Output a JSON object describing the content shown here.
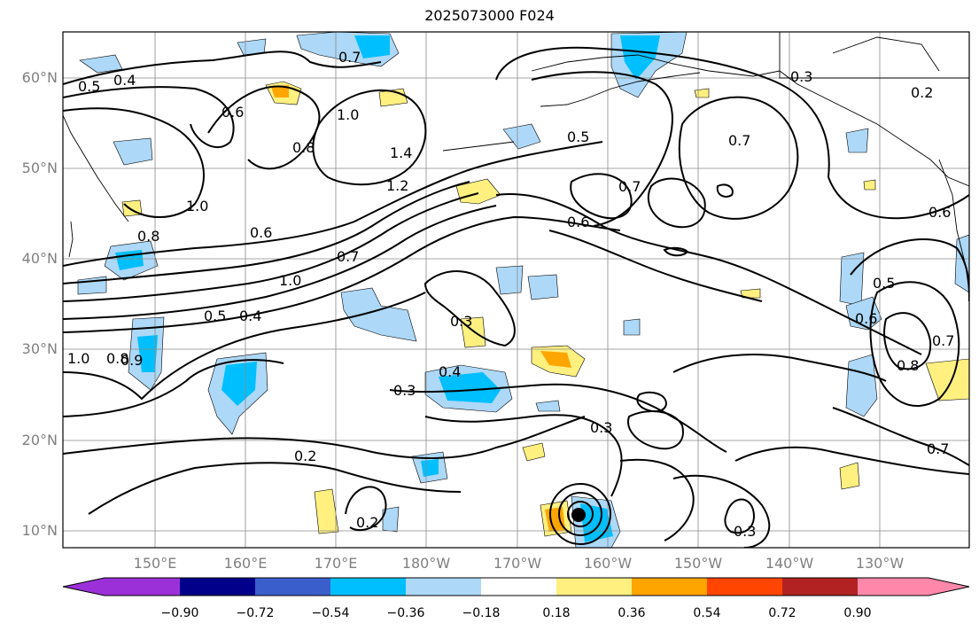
{
  "title": "2025073000 F024",
  "latitude_labels": [
    "60°N",
    "50°N",
    "40°N",
    "30°N",
    "20°N",
    "10°N"
  ],
  "longitude_labels": [
    "150°E",
    "160°E",
    "170°E",
    "180°W",
    "170°W",
    "160°W",
    "150°W",
    "140°W",
    "130°W"
  ],
  "colorbar": {
    "labels": [
      "−0.90",
      "−0.72",
      "−0.54",
      "−0.36",
      "−0.18",
      "0.18",
      "0.36",
      "0.54",
      "0.72",
      "0.90"
    ],
    "colors": [
      "#9b30d9",
      "#00008b",
      "#3a5fcd",
      "#00bfff",
      "#add8f7",
      "#ffffff",
      "#fff080",
      "#ffa500",
      "#ff4500",
      "#b22222",
      "#ff88aa"
    ]
  },
  "contour_labels": [
    "0.5",
    "0.4",
    "0.6",
    "0.7",
    "1.0",
    "0.8",
    "1.4",
    "1.2",
    "1.0",
    "0.6",
    "0.8",
    "1.0",
    "0.7",
    "0.5",
    "0.4",
    "0.3",
    "0.4",
    "0.3",
    "0.2",
    "0.2",
    "0.3",
    "0.3",
    "0.7",
    "0.6",
    "0.5",
    "0.7",
    "0.6",
    "0.5",
    "0.6",
    "0.8",
    "0.7",
    "0.7",
    "0.3",
    "0.2",
    "0.8",
    "0.9",
    "1.0"
  ],
  "storm_marker": "storm-center"
}
